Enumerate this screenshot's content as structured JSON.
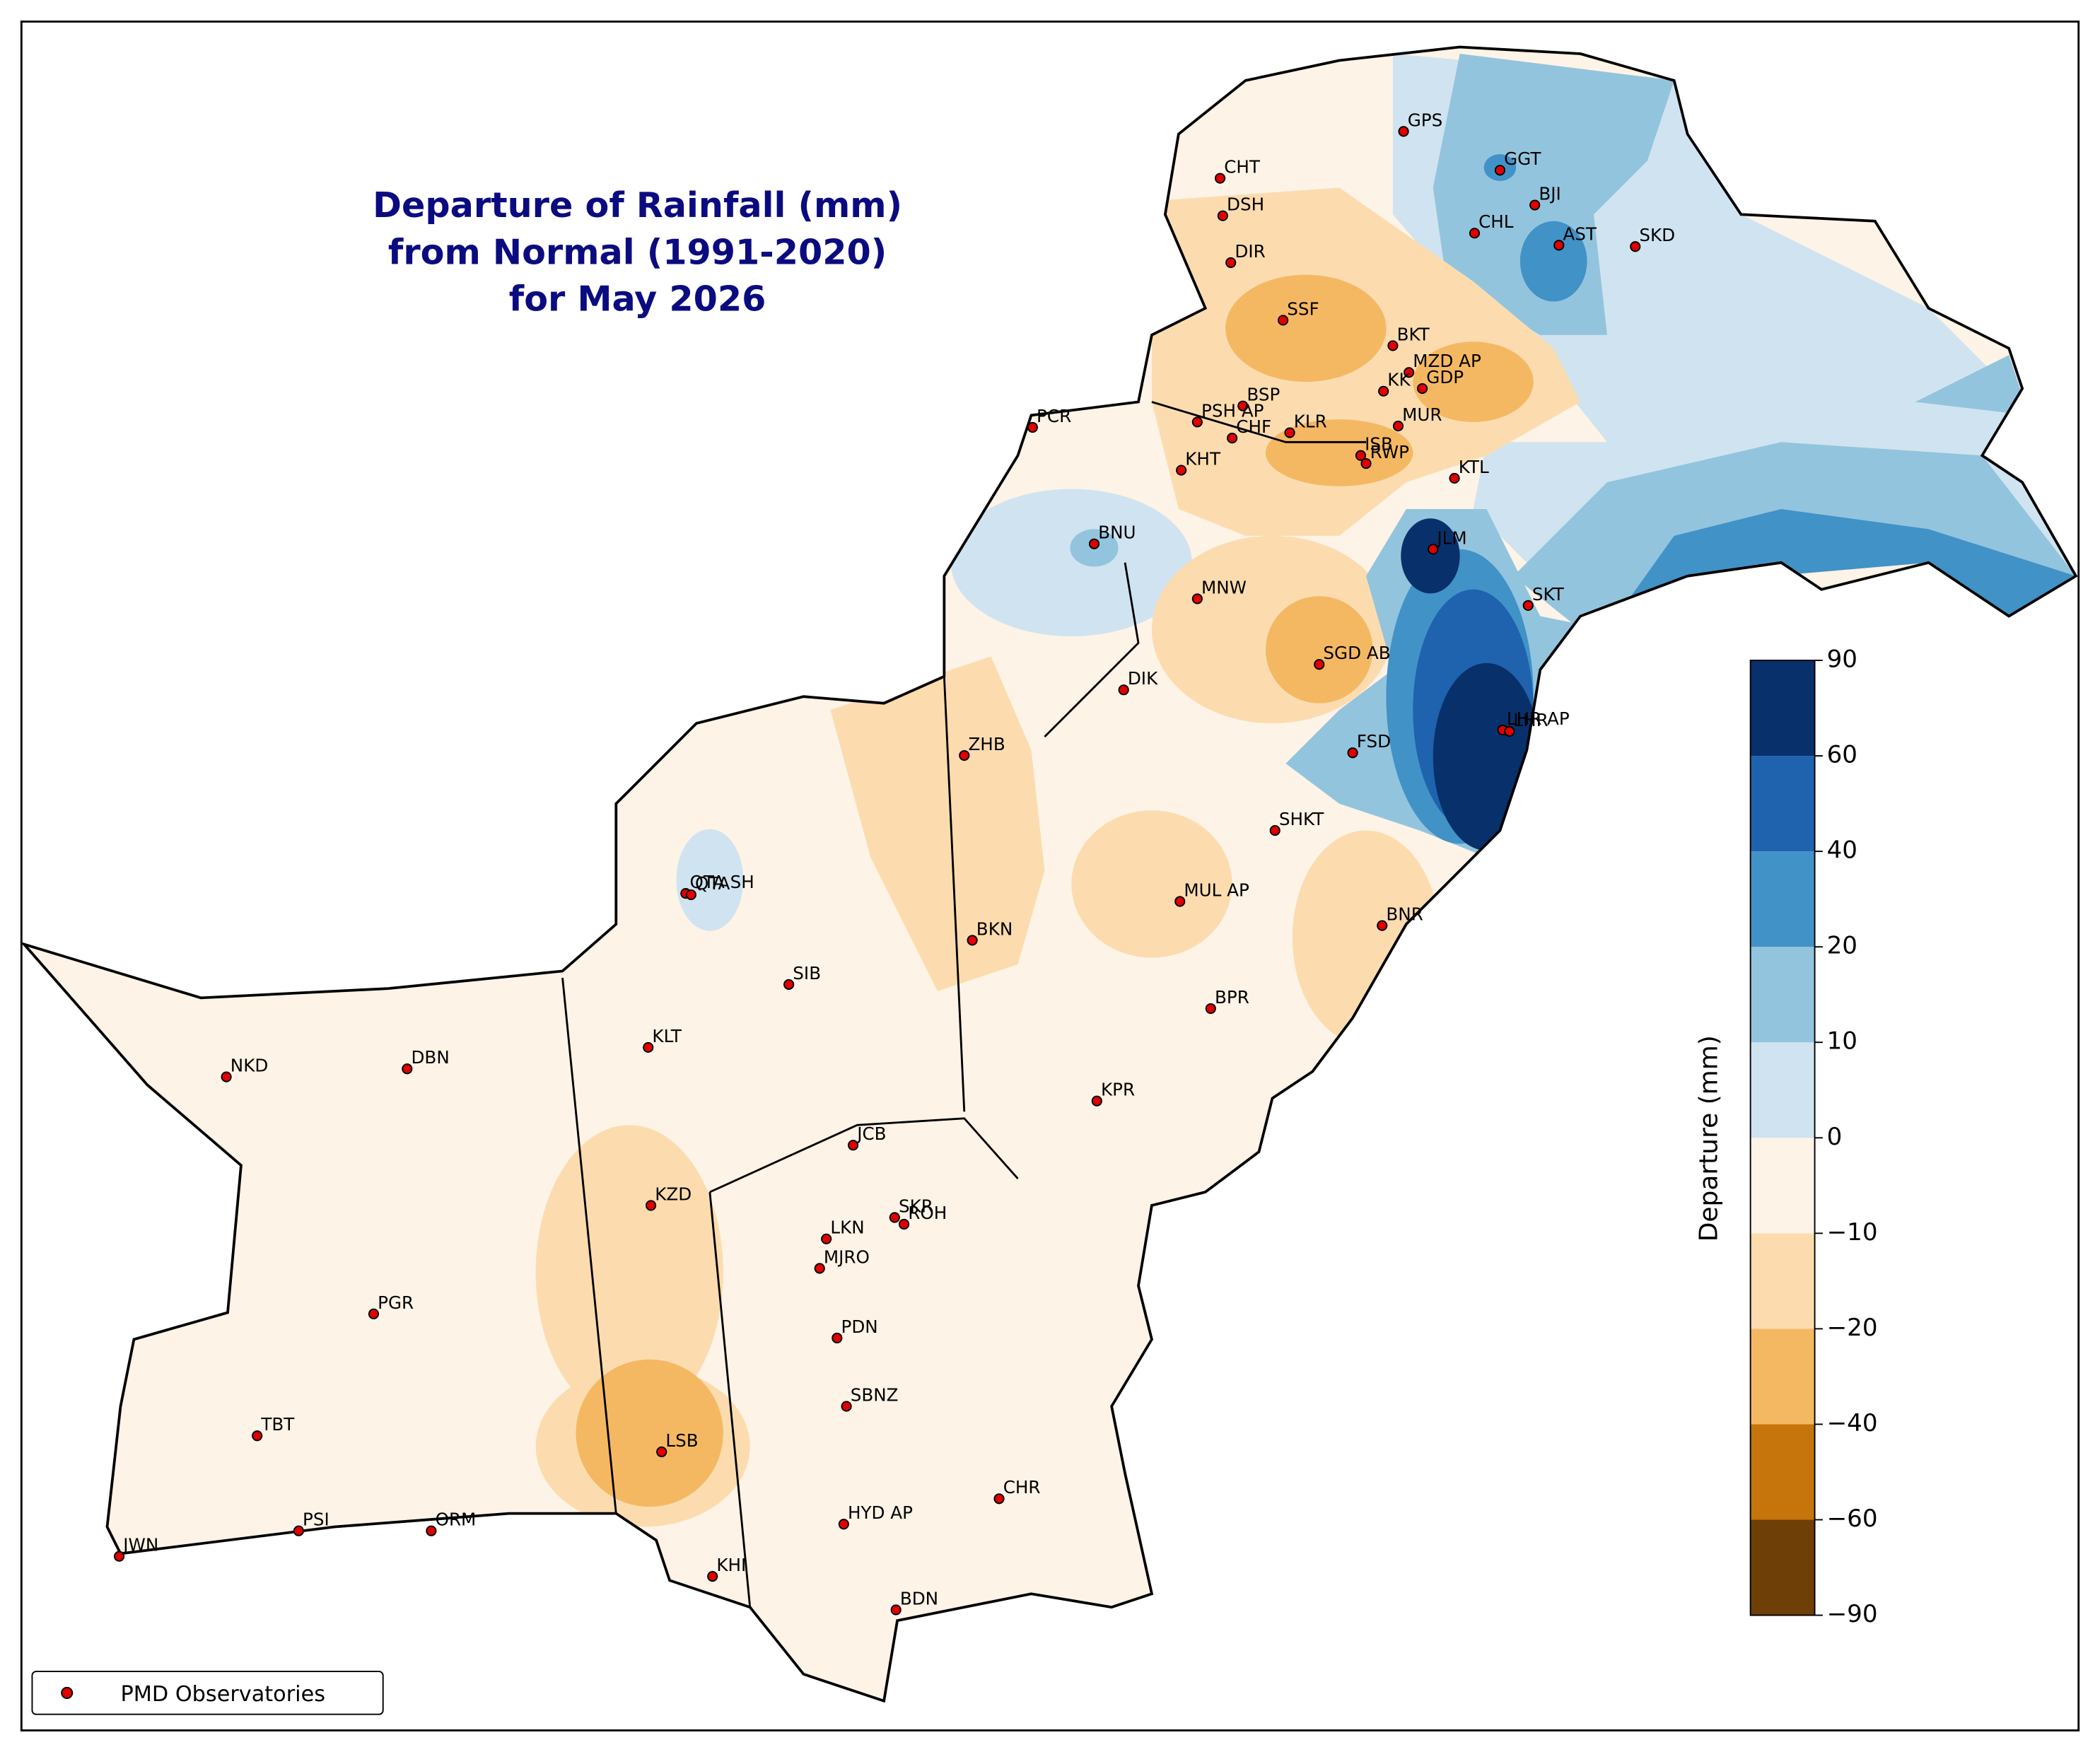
{
  "title": [
    "Departure of Rainfall (mm)",
    "from Normal (1991-2020)",
    "for May 2026"
  ],
  "stations": [
    "GPS",
    "CHT",
    "DSH",
    "DIR",
    "GGT",
    "BJI",
    "CHL",
    "AST",
    "SKD",
    "SSF",
    "BKT",
    "MZD AP",
    "GDP",
    "KK",
    "BSP",
    "PSH AP",
    "CHF",
    "KLR",
    "PCR",
    "MUR",
    "ISB",
    "RWP",
    "KTL",
    "KHT",
    "BNU",
    "JLM",
    "SKT",
    "MNW",
    "SGD AB",
    "DIK",
    "LHR AP",
    "LHR",
    "FSD",
    "ZHB",
    "SHKT",
    "QTA SH",
    "QTA",
    "MUL AP",
    "BNR",
    "BKN",
    "SIB",
    "BPR",
    "KLT",
    "NKD",
    "DBN",
    "KPR",
    "JCB",
    "KZD",
    "SKR",
    "ROH",
    "LKN",
    "MJRO",
    "PGR",
    "PDN",
    "SBNZ",
    "TBT",
    "LSB",
    "CHR",
    "PSI",
    "ORM",
    "HYD AP",
    "JWN",
    "KHI",
    "BDN"
  ],
  "colorbar": {
    "label": "Departure (mm)",
    "ticks": [
      {
        "value": -90,
        "label": "−90"
      },
      {
        "value": -60,
        "label": "−60"
      },
      {
        "value": -40,
        "label": "−40"
      },
      {
        "value": -20,
        "label": "−20"
      },
      {
        "value": -10,
        "label": "−10"
      },
      0,
      10,
      20,
      40,
      60,
      90
    ],
    "colors": [
      "#6f3f08",
      "#c5750b",
      "#f5b862",
      "#fcdcaf",
      "#fdf3e6",
      "#d0e3f0",
      "#93c4de",
      "#4192c6",
      "#1f62ad",
      "#08306b"
    ]
  },
  "legend": {
    "label": "PMD Observatories",
    "color": "#e00000"
  }
}
